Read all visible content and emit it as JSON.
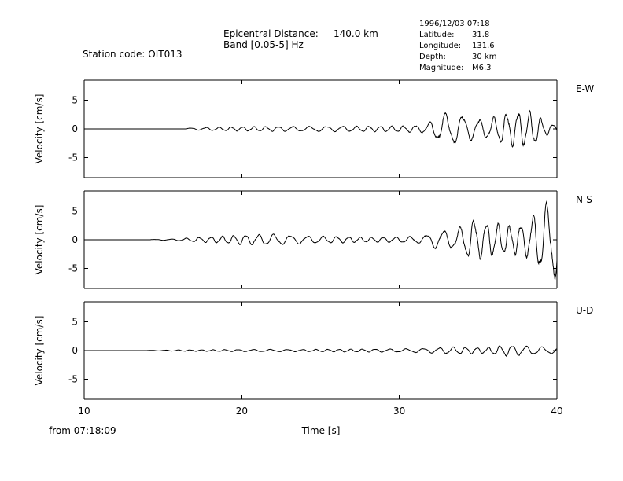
{
  "header": {
    "station_label": "Station code: OIT013",
    "epicentral_label": "Epicentral Distance:",
    "epicentral_value": "140.0 km",
    "band_label": "Band [0.05-5] Hz",
    "event": {
      "datetime": "1996/12/03 07:18",
      "rows": [
        {
          "label": "Latitude:",
          "value": "31.8"
        },
        {
          "label": "Longitude:",
          "value": "131.6"
        },
        {
          "label": "Depth:",
          "value": "30 km"
        },
        {
          "label": "Magnitude:",
          "value": "M6.3"
        }
      ]
    }
  },
  "footer": {
    "start_time": "from 07:18:09"
  },
  "chart_data": {
    "type": "line",
    "xlabel": "Time [s]",
    "xlim": [
      10,
      40
    ],
    "xticks": [
      "10",
      "20",
      "30",
      "40"
    ],
    "ylabel": "Velocity [cm/s]",
    "ylim": [
      -8.5,
      8.5
    ],
    "yticks": [
      "5",
      "0",
      "-5"
    ],
    "grid": false,
    "panels": [
      {
        "name": "E-W",
        "onset_s": 16.5,
        "envelope": [
          [
            16.5,
            0.15
          ],
          [
            18,
            0.3
          ],
          [
            20,
            0.4
          ],
          [
            22,
            0.45
          ],
          [
            24,
            0.45
          ],
          [
            26,
            0.5
          ],
          [
            28,
            0.5
          ],
          [
            30,
            0.55
          ],
          [
            31.5,
            0.7
          ],
          [
            32.3,
            1.8
          ],
          [
            33,
            3.0
          ],
          [
            34,
            2.5
          ],
          [
            35,
            1.7
          ],
          [
            35.8,
            1.9
          ],
          [
            36.5,
            2.8
          ],
          [
            37.5,
            3.3
          ],
          [
            38.5,
            3.2
          ],
          [
            39.3,
            1.2
          ],
          [
            40,
            0.7
          ]
        ],
        "peak_velocity": 3.6,
        "min_velocity": -3.6
      },
      {
        "name": "N-S",
        "onset_s": 14.2,
        "envelope": [
          [
            14.2,
            0.05
          ],
          [
            15.8,
            0.15
          ],
          [
            17,
            0.4
          ],
          [
            18.5,
            0.6
          ],
          [
            20,
            0.9
          ],
          [
            22,
            1.0
          ],
          [
            24,
            0.7
          ],
          [
            26,
            0.6
          ],
          [
            28,
            0.45
          ],
          [
            30,
            0.5
          ],
          [
            31.5,
            0.7
          ],
          [
            32.5,
            1.8
          ],
          [
            33.5,
            1.6
          ],
          [
            34.6,
            3.8
          ],
          [
            36,
            3.0
          ],
          [
            37,
            2.6
          ],
          [
            38,
            3.0
          ],
          [
            38.7,
            5.0
          ],
          [
            39.4,
            6.8
          ],
          [
            40,
            7.5
          ]
        ],
        "peak_velocity": 7.0,
        "min_velocity": -7.5
      },
      {
        "name": "U-D",
        "onset_s": 14.0,
        "envelope": [
          [
            14.0,
            0.03
          ],
          [
            16,
            0.12
          ],
          [
            18,
            0.15
          ],
          [
            20,
            0.2
          ],
          [
            22,
            0.22
          ],
          [
            24,
            0.2
          ],
          [
            26,
            0.25
          ],
          [
            28,
            0.28
          ],
          [
            30,
            0.3
          ],
          [
            32,
            0.45
          ],
          [
            33.3,
            0.65
          ],
          [
            34.5,
            0.6
          ],
          [
            35.5,
            0.5
          ],
          [
            36.6,
            1.0
          ],
          [
            37.5,
            0.9
          ],
          [
            38.5,
            0.75
          ],
          [
            39.5,
            0.6
          ],
          [
            40,
            0.5
          ]
        ],
        "peak_velocity": 1.2,
        "min_velocity": -1.0
      }
    ]
  }
}
